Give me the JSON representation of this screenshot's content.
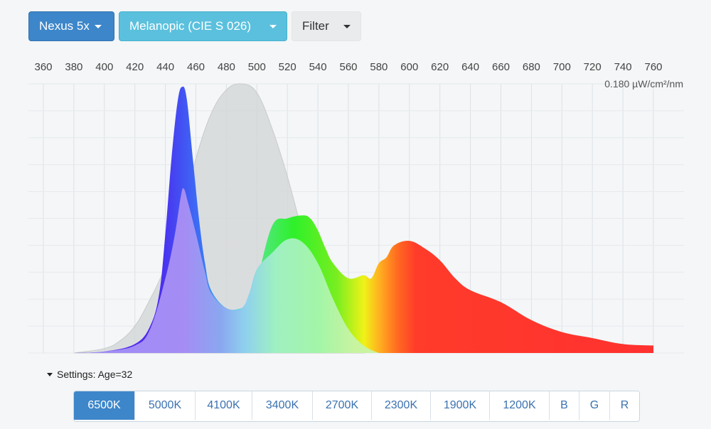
{
  "toolbar": {
    "device": "Nexus 5x",
    "curve": "Melanopic (CIE S 026)",
    "filter": "Filter"
  },
  "chart_data": {
    "type": "area",
    "xlim": [
      355,
      765
    ],
    "xticks": [
      360,
      380,
      400,
      420,
      440,
      460,
      480,
      500,
      520,
      540,
      560,
      580,
      600,
      620,
      640,
      660,
      680,
      700,
      720,
      740,
      760
    ],
    "ylim": [
      0,
      0.18
    ],
    "y_max_label": "0.180 µW/cm²/nm",
    "grid": true,
    "series": [
      {
        "kind": "melanopic-sensitivity-gray",
        "x": [
          380,
          400,
          410,
          420,
          430,
          440,
          450,
          460,
          470,
          480,
          490,
          500,
          510,
          520,
          530,
          540,
          550,
          560,
          570
        ],
        "values": [
          0,
          0.003,
          0.008,
          0.018,
          0.036,
          0.058,
          0.088,
          0.13,
          0.16,
          0.176,
          0.18,
          0.174,
          0.15,
          0.118,
          0.08,
          0.044,
          0.02,
          0.006,
          0
        ]
      },
      {
        "kind": "spectrum-outline",
        "x": [
          380,
          400,
          420,
          430,
          436,
          440,
          444,
          448,
          451,
          454,
          458,
          462,
          466,
          470,
          480,
          490,
          495,
          500,
          510,
          520,
          530,
          535,
          540,
          545,
          550,
          560,
          570,
          575,
          580,
          585,
          590,
          600,
          610,
          620,
          630,
          640,
          660,
          680,
          700,
          720,
          740,
          760
        ],
        "values": [
          0,
          0.001,
          0.006,
          0.018,
          0.04,
          0.08,
          0.13,
          0.168,
          0.178,
          0.17,
          0.13,
          0.09,
          0.06,
          0.042,
          0.03,
          0.03,
          0.034,
          0.048,
          0.085,
          0.09,
          0.092,
          0.09,
          0.082,
          0.07,
          0.06,
          0.05,
          0.052,
          0.05,
          0.06,
          0.064,
          0.072,
          0.075,
          0.07,
          0.062,
          0.05,
          0.042,
          0.034,
          0.022,
          0.014,
          0.01,
          0.006,
          0.005
        ]
      },
      {
        "kind": "melanopic-weighted",
        "x": [
          380,
          400,
          420,
          430,
          440,
          446,
          450,
          452,
          455,
          460,
          466,
          470,
          480,
          490,
          495,
          500,
          510,
          520,
          530,
          540,
          550,
          560,
          570,
          580
        ],
        "values": [
          0,
          0.001,
          0.005,
          0.016,
          0.05,
          0.078,
          0.104,
          0.11,
          0.1,
          0.08,
          0.054,
          0.04,
          0.03,
          0.03,
          0.04,
          0.056,
          0.067,
          0.076,
          0.074,
          0.06,
          0.036,
          0.016,
          0.005,
          0
        ]
      }
    ]
  },
  "settings": {
    "label": "Settings: Age=32",
    "presets": [
      "6500K",
      "5000K",
      "4100K",
      "3400K",
      "2700K",
      "2300K",
      "1900K",
      "1200K",
      "B",
      "G",
      "R"
    ],
    "active": "6500K"
  }
}
